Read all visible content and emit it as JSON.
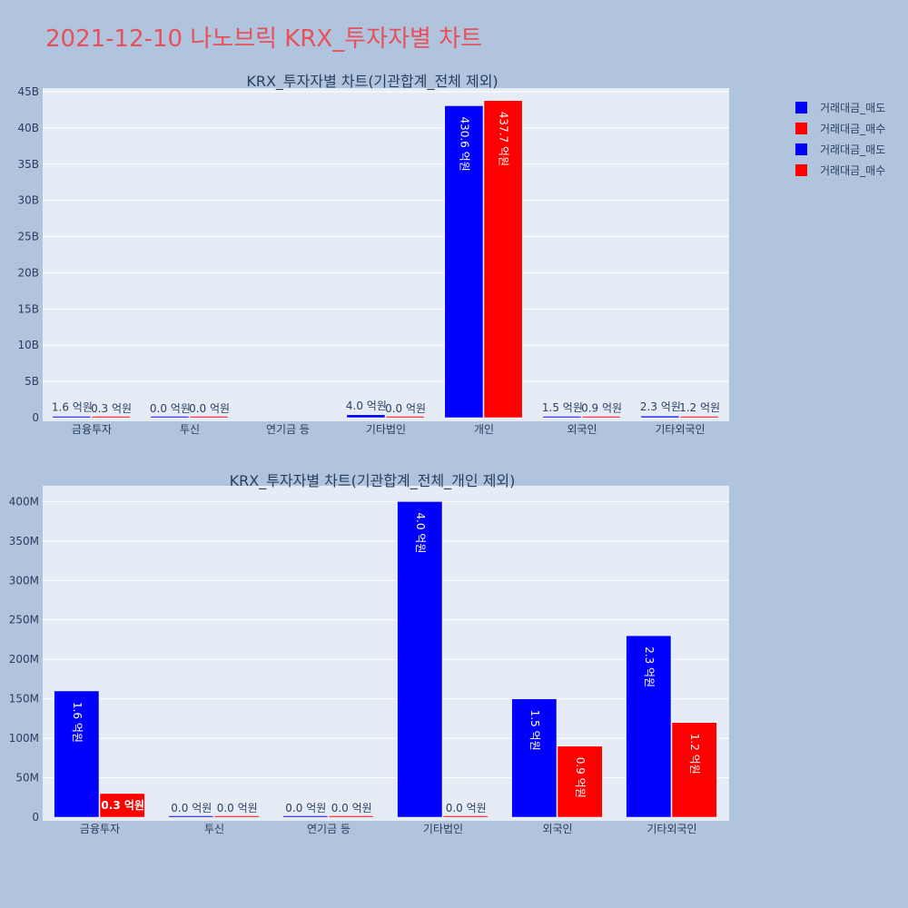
{
  "page_title": "2021-12-10 나노브릭 KRX_투자자별 차트",
  "colors": {
    "background": "#b0c4de",
    "plot_bg": "#e5ecf6",
    "sell": "#0000ff",
    "buy": "#ff0000",
    "title": "#e8505b",
    "text": "#2a3f5f"
  },
  "legend": [
    {
      "label": "거래대금_매도",
      "color": "#0000ff"
    },
    {
      "label": "거래대금_매수",
      "color": "#ff0000"
    },
    {
      "label": "거래대금_매도",
      "color": "#0000ff"
    },
    {
      "label": "거래대금_매수",
      "color": "#ff0000"
    }
  ],
  "chart_data": [
    {
      "type": "bar",
      "title": "KRX_투자자별 차트(기관합계_전체 제외)",
      "categories": [
        "금융투자",
        "투신",
        "연기금 등",
        "기타법인",
        "개인",
        "외국인",
        "기타외국인"
      ],
      "series": [
        {
          "name": "거래대금_매도",
          "color": "#0000ff",
          "values": [
            160000000,
            0,
            null,
            400000000,
            43060000000,
            150000000,
            230000000
          ],
          "labels": [
            "1.6 억원",
            "0.0 억원",
            "",
            "4.0 억원",
            "430.6 억원",
            "1.5 억원",
            "2.3 억원"
          ]
        },
        {
          "name": "거래대금_매수",
          "color": "#ff0000",
          "values": [
            30000000,
            0,
            null,
            0,
            43770000000,
            90000000,
            120000000
          ],
          "labels": [
            "0.3 억원",
            "0.0 억원",
            "",
            "0.0 억원",
            "437.7 억원",
            "0.9 억원",
            "1.2 억원"
          ]
        }
      ],
      "ylim": [
        0,
        45500000000
      ],
      "yticks": [
        0,
        5000000000,
        10000000000,
        15000000000,
        20000000000,
        25000000000,
        30000000000,
        35000000000,
        40000000000,
        45000000000
      ],
      "ytick_labels": [
        "0",
        "5B",
        "10B",
        "15B",
        "20B",
        "25B",
        "30B",
        "35B",
        "40B",
        "45B"
      ],
      "grid": true
    },
    {
      "type": "bar",
      "title": "KRX_투자자별 차트(기관합계_전체_개인 제외)",
      "categories": [
        "금융투자",
        "투신",
        "연기금 등",
        "기타법인",
        "외국인",
        "기타외국인"
      ],
      "series": [
        {
          "name": "거래대금_매도",
          "color": "#0000ff",
          "values": [
            160000000,
            0,
            0,
            400000000,
            150000000,
            230000000
          ],
          "labels": [
            "1.6 억원",
            "0.0 억원",
            "0.0 억원",
            "4.0 억원",
            "1.5 억원",
            "2.3 억원"
          ]
        },
        {
          "name": "거래대금_매수",
          "color": "#ff0000",
          "values": [
            30000000,
            0,
            0,
            0,
            90000000,
            120000000
          ],
          "labels": [
            "0.3 억원",
            "0.0 억원",
            "0.0 억원",
            "0.0 억원",
            "0.9 억원",
            "1.2 억원"
          ]
        }
      ],
      "ylim": [
        0,
        420000000
      ],
      "yticks": [
        0,
        50000000,
        100000000,
        150000000,
        200000000,
        250000000,
        300000000,
        350000000,
        400000000
      ],
      "ytick_labels": [
        "0",
        "50M",
        "100M",
        "150M",
        "200M",
        "250M",
        "300M",
        "350M",
        "400M"
      ],
      "grid": true
    }
  ]
}
